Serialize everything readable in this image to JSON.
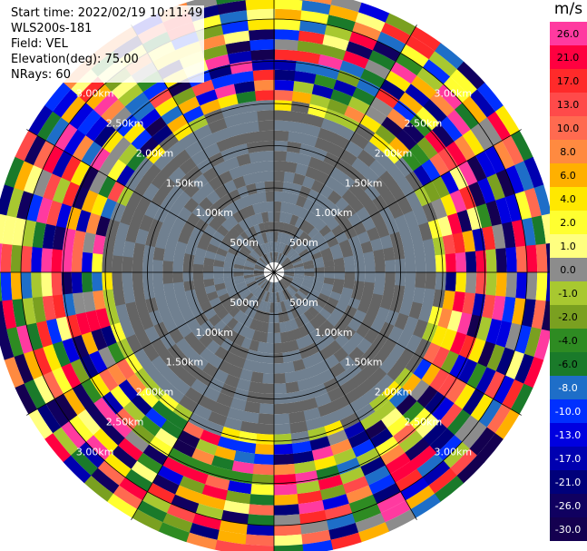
{
  "info": {
    "start_time": "Start time: 2022/02/19 10:11:49",
    "instrument": "WLS200s-181",
    "field": "Field: VEL",
    "elevation": "Elevation(deg): 75.00",
    "nrays": "NRays: 60"
  },
  "colorbar": {
    "unit": "m/s",
    "ticks": [
      "26.0",
      "21.0",
      "17.0",
      "13.0",
      "10.0",
      "8.0",
      "6.0",
      "4.0",
      "2.0",
      "1.0",
      "0.0",
      "-1.0",
      "-2.0",
      "-4.0",
      "-6.0",
      "-8.0",
      "-10.0",
      "-13.0",
      "-17.0",
      "-21.0",
      "-26.0",
      "-30.0"
    ],
    "colors": [
      "#ff3aa0",
      "#ff0040",
      "#ff2a2a",
      "#ff4a4a",
      "#ff6a50",
      "#ff8a40",
      "#ffb000",
      "#ffe800",
      "#ffff30",
      "#ffff80",
      "#8c8c8c",
      "#a8c830",
      "#7aa020",
      "#2e8b22",
      "#1a7a2a",
      "#1e6ec8",
      "#0030ff",
      "#0000e0",
      "#0000b0",
      "#00007a",
      "#100060",
      "#140050"
    ]
  },
  "chart_data": {
    "type": "heatmap",
    "projection": "polar (PPI)",
    "field": "VEL",
    "unit": "m/s",
    "nrays": 60,
    "elevation_deg": 75.0,
    "range_rings_km": [
      0.5,
      1.0,
      1.5,
      2.0,
      2.5,
      3.0
    ],
    "ring_labels": [
      "500m",
      "1.00km",
      "1.50km",
      "2.00km",
      "2.50km",
      "3.00km"
    ],
    "approx_regions": [
      {
        "range_km": [
          0.0,
          1.9
        ],
        "dominant_value": "0.0 to -1.0"
      },
      {
        "range_km": [
          1.9,
          2.1
        ],
        "dominant_value": "-2.0 to 2.0 (ring of weak velocities)"
      },
      {
        "range_km": [
          2.1,
          3.3
        ],
        "dominant_value": "mixed -30.0 to 26.0 (noisy)"
      }
    ]
  }
}
